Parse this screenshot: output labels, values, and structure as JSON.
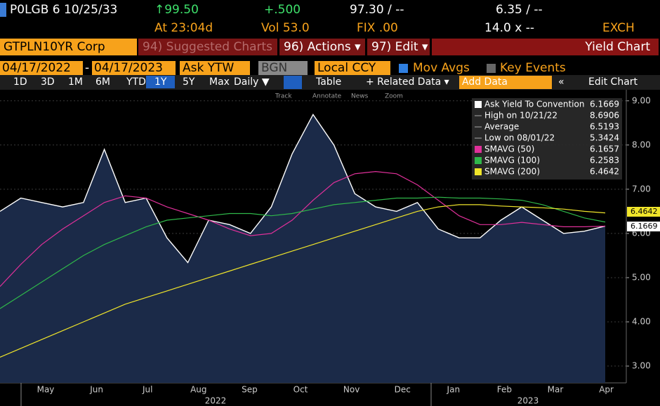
{
  "header": {
    "ticker": "P0LGB 6 10/25/33",
    "price": "↑99.50",
    "change": "+.500",
    "bid_ask": "97.30 / --",
    "yield": "6.35 / --",
    "time": "At 23:04d",
    "volume": "Vol 53.0",
    "fix": "FIX .00",
    "size": "14.0 x --",
    "source": "EXCH"
  },
  "menu": {
    "security": "GTPLN10YR Corp",
    "items": [
      "94) Suggested Charts",
      "96) Actions ▾",
      "97) Edit ▾"
    ],
    "title": "Yield Chart"
  },
  "controls": {
    "start": "04/17/2022",
    "separator": "-",
    "end": "04/17/2023",
    "field": "Ask YTW",
    "pricing_source": "BGN",
    "currency": "Local CCY",
    "mov_avgs": "Mov Avgs",
    "key_events": "Key Events"
  },
  "toolbar": {
    "periods": [
      "1D",
      "3D",
      "1M",
      "6M",
      "YTD",
      "1Y",
      "5Y",
      "Max"
    ],
    "frequency": "Daily ▼",
    "table": "Table",
    "related": "+ Related Data ▾",
    "add_data": "Add Data",
    "edit_chart": "Edit Chart"
  },
  "tools": [
    "Track",
    "Annotate",
    "News",
    "Zoom"
  ],
  "chart_data": {
    "type": "line",
    "months": [
      "May",
      "Jun",
      "Jul",
      "Aug",
      "Sep",
      "Oct",
      "Nov",
      "Dec",
      "Jan",
      "Feb",
      "Mar",
      "Apr"
    ],
    "years": [
      "2022",
      "2023"
    ],
    "ylim": [
      2.62,
      9.25
    ],
    "yticks": [
      {
        "value": 3,
        "label": "3.00"
      },
      {
        "value": 4,
        "label": "4.00"
      },
      {
        "value": 5,
        "label": "5.00"
      },
      {
        "value": 6,
        "label": "6.00"
      },
      {
        "value": 7,
        "label": "7.00"
      },
      {
        "value": 8,
        "label": "8.00"
      },
      {
        "value": 9,
        "label": "9.00"
      }
    ],
    "grid": true,
    "series": [
      {
        "name": "Ask Yield To Convention",
        "color": "#ffffff",
        "fill": "#1b2a48",
        "legend_value": 6.1669,
        "values": [
          6.5,
          6.8,
          6.7,
          6.6,
          6.7,
          7.9,
          6.7,
          6.8,
          5.9,
          5.34,
          6.3,
          6.2,
          6.0,
          6.6,
          7.8,
          8.69,
          8.0,
          6.9,
          6.6,
          6.5,
          6.7,
          6.1,
          5.9,
          5.9,
          6.3,
          6.6,
          6.3,
          6.0,
          6.05,
          6.1669
        ]
      },
      {
        "name": "SMAVG (50)",
        "color": "#e0309a",
        "legend_value": 6.1657,
        "values": [
          4.8,
          5.3,
          5.75,
          6.1,
          6.4,
          6.7,
          6.85,
          6.8,
          6.6,
          6.45,
          6.3,
          6.1,
          5.95,
          6.0,
          6.3,
          6.75,
          7.15,
          7.35,
          7.4,
          7.35,
          7.1,
          6.75,
          6.4,
          6.2,
          6.2,
          6.25,
          6.2,
          6.15,
          6.15,
          6.1657
        ]
      },
      {
        "name": "SMAVG (100)",
        "color": "#2fb84a",
        "legend_value": 6.2583,
        "values": [
          4.3,
          4.6,
          4.9,
          5.2,
          5.5,
          5.75,
          5.95,
          6.15,
          6.3,
          6.35,
          6.4,
          6.45,
          6.45,
          6.4,
          6.45,
          6.55,
          6.65,
          6.7,
          6.75,
          6.8,
          6.8,
          6.82,
          6.8,
          6.8,
          6.78,
          6.75,
          6.65,
          6.5,
          6.35,
          6.2583
        ]
      },
      {
        "name": "SMAVG (200)",
        "color": "#f0e52a",
        "legend_value": 6.4642,
        "values": [
          3.2,
          3.4,
          3.6,
          3.8,
          4.0,
          4.2,
          4.4,
          4.55,
          4.7,
          4.85,
          5.0,
          5.15,
          5.3,
          5.45,
          5.6,
          5.75,
          5.9,
          6.05,
          6.2,
          6.35,
          6.5,
          6.6,
          6.65,
          6.65,
          6.62,
          6.6,
          6.58,
          6.55,
          6.5,
          6.4642
        ]
      }
    ],
    "stats": [
      {
        "label": "High on 10/21/22",
        "value": 8.6906
      },
      {
        "label": "Average",
        "value": 6.5193
      },
      {
        "label": "Low on 08/01/22",
        "value": 5.3424
      }
    ]
  }
}
